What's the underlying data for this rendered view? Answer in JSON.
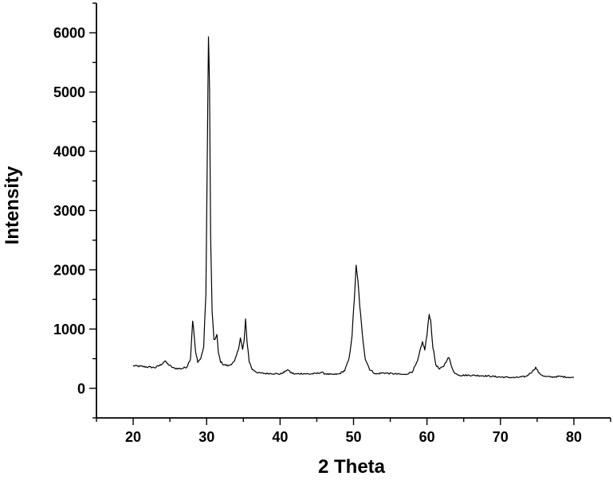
{
  "chart_data": {
    "type": "line",
    "xlabel": "2 Theta",
    "ylabel": "Intensity",
    "xlim": [
      15,
      85
    ],
    "ylim": [
      -500,
      6500
    ],
    "xticks": [
      20,
      30,
      40,
      50,
      60,
      70,
      80
    ],
    "yticks": [
      0,
      1000,
      2000,
      3000,
      4000,
      5000,
      6000
    ],
    "x_tick_labels": [
      "20",
      "30",
      "40",
      "50",
      "60",
      "70",
      "80"
    ],
    "y_tick_labels": [
      "0",
      "1000",
      "2000",
      "3000",
      "4000",
      "5000",
      "6000"
    ],
    "grid": false,
    "legend": "none",
    "line_color": "#000000",
    "series": [
      {
        "x": [
          20,
          21,
          22,
          23,
          23.8,
          24.3,
          24.8,
          25.5,
          26.5,
          27.3,
          27.8,
          28.1,
          28.3,
          28.5,
          28.8,
          29.2,
          29.6,
          29.9,
          30.1,
          30.25,
          30.4,
          30.55,
          30.75,
          31.0,
          31.2,
          31.4,
          31.6,
          31.9,
          32.3,
          33,
          33.8,
          34.3,
          34.6,
          34.9,
          35.1,
          35.3,
          35.5,
          35.8,
          36.2,
          37,
          38,
          39,
          40,
          40.7,
          41.0,
          41.4,
          42,
          43,
          44,
          45,
          45.6,
          46,
          47,
          48,
          48.8,
          49.4,
          49.8,
          50.1,
          50.35,
          50.6,
          50.85,
          51.2,
          51.6,
          52.2,
          53,
          54,
          55,
          56,
          57,
          58,
          58.7,
          59.1,
          59.4,
          59.7,
          60.0,
          60.3,
          60.5,
          60.8,
          61.2,
          61.7,
          62.3,
          62.7,
          63.0,
          63.3,
          63.8,
          64.5,
          66,
          68,
          70,
          72,
          73.5,
          74.3,
          74.8,
          75.3,
          76,
          77,
          78,
          79,
          80
        ],
        "y": [
          380,
          370,
          360,
          350,
          400,
          460,
          400,
          340,
          330,
          360,
          500,
          1150,
          900,
          600,
          450,
          500,
          700,
          1600,
          4000,
          6030,
          5000,
          2500,
          1300,
          800,
          850,
          900,
          600,
          450,
          400,
          380,
          450,
          650,
          850,
          650,
          800,
          1150,
          800,
          450,
          320,
          260,
          250,
          250,
          240,
          280,
          320,
          270,
          240,
          250,
          240,
          250,
          270,
          250,
          230,
          240,
          300,
          500,
          900,
          1500,
          2050,
          1800,
          1400,
          900,
          500,
          320,
          240,
          260,
          250,
          240,
          230,
          280,
          450,
          650,
          780,
          650,
          900,
          1250,
          1150,
          700,
          400,
          320,
          380,
          480,
          520,
          380,
          250,
          220,
          220,
          210,
          190,
          180,
          200,
          280,
          350,
          250,
          200,
          190,
          200,
          190,
          180
        ]
      }
    ]
  }
}
